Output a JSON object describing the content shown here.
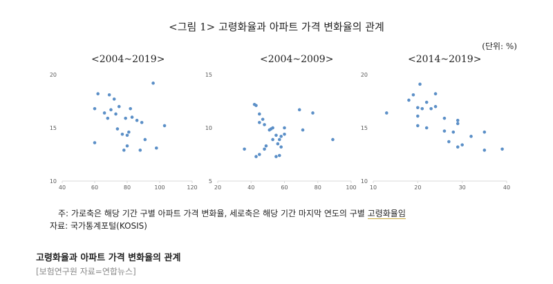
{
  "figure_title": "<그림 1> 고령화율과 아파트 가격 변화율의 관계",
  "unit_label": "(단위: %)",
  "notes": {
    "line1_prefix": "주: 가로축은 해당 기간 구별 아파트 가격 변화율, 세로축은 해당 기간 마지막 연도의 구별 ",
    "line1_emph": "고령화율임",
    "line2": "자료: 국가통계포털(KOSIS)"
  },
  "caption": {
    "title": "고령화율과 아파트 가격 변화율의 관계",
    "source": "[보험연구원 자료=연합뉴스]"
  },
  "chart_data": [
    {
      "type": "scatter",
      "title": "<2004~2019>",
      "xlabel": "",
      "ylabel": "",
      "xlim": [
        40,
        120
      ],
      "ylim": [
        10,
        20
      ],
      "xticks": [
        40,
        60,
        80,
        100,
        120
      ],
      "yticks": [
        10,
        15,
        20
      ],
      "grid": false,
      "color": "#5b8fc7",
      "points": [
        [
          60,
          16.8
        ],
        [
          62,
          18.2
        ],
        [
          66,
          16.4
        ],
        [
          68,
          15.9
        ],
        [
          69,
          18.1
        ],
        [
          70,
          16.7
        ],
        [
          72,
          17.7
        ],
        [
          73,
          16.3
        ],
        [
          74,
          14.9
        ],
        [
          75,
          17
        ],
        [
          77,
          14.4
        ],
        [
          78,
          12.9
        ],
        [
          79,
          15.9
        ],
        [
          80,
          13.3
        ],
        [
          80,
          14.3
        ],
        [
          81,
          14.6
        ],
        [
          82,
          16.8
        ],
        [
          83,
          16
        ],
        [
          86,
          15.7
        ],
        [
          88,
          12.9
        ],
        [
          89,
          15.5
        ],
        [
          91,
          13.9
        ],
        [
          96,
          19.2
        ],
        [
          98,
          13.1
        ],
        [
          103,
          15.2
        ],
        [
          60,
          13.6
        ]
      ]
    },
    {
      "type": "scatter",
      "title": "<2004~2009>",
      "xlabel": "",
      "ylabel": "",
      "xlim": [
        20,
        100
      ],
      "ylim": [
        5,
        15
      ],
      "xticks": [
        20,
        40,
        60,
        80,
        100
      ],
      "yticks": [
        5,
        10,
        15
      ],
      "grid": false,
      "color": "#5b8fc7",
      "points": [
        [
          36,
          8
        ],
        [
          42,
          12.2
        ],
        [
          43,
          12.1
        ],
        [
          43,
          7.3
        ],
        [
          45,
          7.5
        ],
        [
          45,
          11.3
        ],
        [
          45,
          10.5
        ],
        [
          47,
          10.8
        ],
        [
          48,
          10.3
        ],
        [
          48,
          8
        ],
        [
          49,
          8.3
        ],
        [
          51,
          9.8
        ],
        [
          52,
          9.9
        ],
        [
          53,
          10
        ],
        [
          53,
          8.9
        ],
        [
          55,
          7.3
        ],
        [
          55,
          9.3
        ],
        [
          56,
          8.5
        ],
        [
          57,
          8.9
        ],
        [
          57,
          7.4
        ],
        [
          58,
          8.2
        ],
        [
          58,
          9.2
        ],
        [
          60,
          9.4
        ],
        [
          60,
          10
        ],
        [
          69,
          11.7
        ],
        [
          71,
          9.8
        ],
        [
          77,
          11.4
        ],
        [
          89,
          8.9
        ]
      ]
    },
    {
      "type": "scatter",
      "title": "<2014~2019>",
      "xlabel": "",
      "ylabel": "",
      "xlim": [
        10,
        40
      ],
      "ylim": [
        10,
        20
      ],
      "xticks": [
        10,
        20,
        30,
        40
      ],
      "yticks": [
        10,
        15,
        20
      ],
      "grid": false,
      "color": "#5b8fc7",
      "points": [
        [
          13,
          16.4
        ],
        [
          18,
          17.6
        ],
        [
          19,
          18.1
        ],
        [
          20,
          16.9
        ],
        [
          20,
          15.2
        ],
        [
          20,
          16.1
        ],
        [
          20.5,
          19.1
        ],
        [
          21,
          16.8
        ],
        [
          22,
          15
        ],
        [
          22,
          17.4
        ],
        [
          23,
          16.8
        ],
        [
          24,
          18.2
        ],
        [
          24,
          17
        ],
        [
          26,
          15.9
        ],
        [
          26,
          14.7
        ],
        [
          27,
          13.7
        ],
        [
          28,
          14.6
        ],
        [
          29,
          15.7
        ],
        [
          29,
          15.4
        ],
        [
          29,
          13.2
        ],
        [
          30,
          13.4
        ],
        [
          32,
          14.2
        ],
        [
          35,
          14.6
        ],
        [
          35,
          12.9
        ],
        [
          39,
          13
        ]
      ]
    }
  ]
}
